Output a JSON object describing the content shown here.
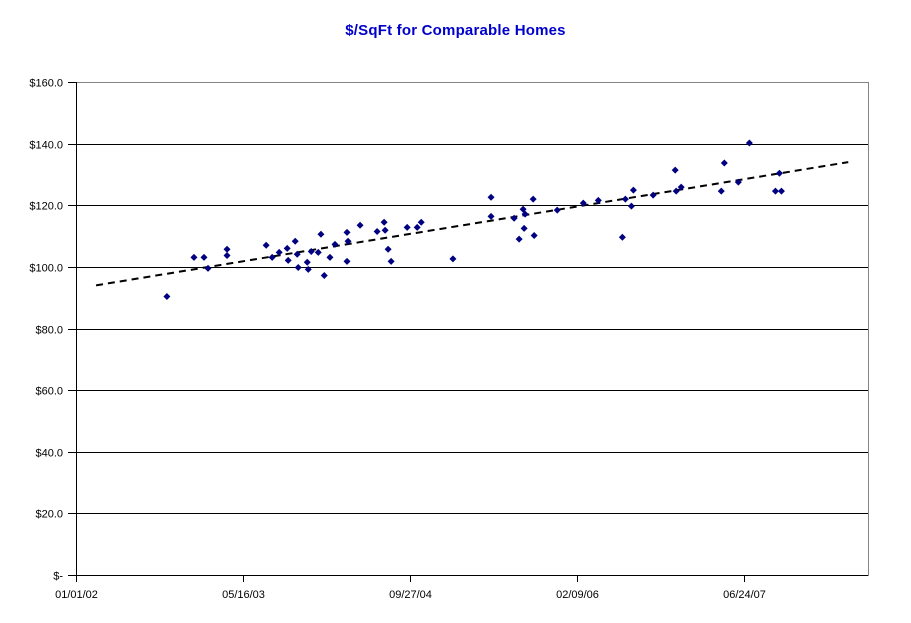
{
  "title": "$/SqFt for Comparable Homes",
  "colors": {
    "title": "#0000CC",
    "marker": "#000080",
    "trendline": "#000000",
    "gridline": "#000000",
    "axis": "#000000",
    "plot_border": "#848484",
    "tick_label": "#000000",
    "background": "#FFFFFF"
  },
  "chart_data": {
    "type": "scatter",
    "title": "$/SqFt for Comparable Homes",
    "legend": "none",
    "grid": "horizontal",
    "x_axis": {
      "unit": "sale date, linear in days since 01/01/02",
      "range_days": [
        0,
        2370
      ],
      "ticks": [
        {
          "days": 0,
          "label": "01/01/02"
        },
        {
          "days": 500,
          "label": "05/16/03"
        },
        {
          "days": 1000,
          "label": "09/27/04"
        },
        {
          "days": 1500,
          "label": "02/09/06"
        },
        {
          "days": 2000,
          "label": "06/24/07"
        }
      ]
    },
    "y_axis": {
      "unit": "price per square foot ($)",
      "range": [
        0,
        160
      ],
      "tick_step": 20,
      "tick_labels": [
        "$-",
        "$20.0",
        "$40.0",
        "$60.0",
        "$80.0",
        "$100.0",
        "$120.0",
        "$140.0",
        "$160.0"
      ]
    },
    "series": [
      {
        "name": "$/SqFt",
        "marker": "diamond",
        "marker_size": 7,
        "points_day_price": [
          [
            272,
            90.4
          ],
          [
            353,
            103.1
          ],
          [
            383,
            103.1
          ],
          [
            395,
            99.5
          ],
          [
            452,
            105.7
          ],
          [
            452,
            103.7
          ],
          [
            569,
            107.0
          ],
          [
            587,
            103.1
          ],
          [
            608,
            104.7
          ],
          [
            632,
            106.0
          ],
          [
            635,
            102.1
          ],
          [
            656,
            108.3
          ],
          [
            662,
            104.1
          ],
          [
            665,
            99.8
          ],
          [
            692,
            101.5
          ],
          [
            695,
            99.2
          ],
          [
            704,
            105.0
          ],
          [
            725,
            104.7
          ],
          [
            733,
            110.6
          ],
          [
            743,
            97.2
          ],
          [
            760,
            103.1
          ],
          [
            775,
            107.3
          ],
          [
            811,
            111.2
          ],
          [
            814,
            108.3
          ],
          [
            811,
            101.8
          ],
          [
            850,
            113.5
          ],
          [
            901,
            111.5
          ],
          [
            922,
            114.5
          ],
          [
            925,
            111.9
          ],
          [
            934,
            105.7
          ],
          [
            943,
            101.8
          ],
          [
            991,
            112.8
          ],
          [
            1021,
            112.8
          ],
          [
            1033,
            114.5
          ],
          [
            1128,
            102.6
          ],
          [
            1242,
            122.6
          ],
          [
            1242,
            116.4
          ],
          [
            1311,
            115.8
          ],
          [
            1326,
            109.0
          ],
          [
            1338,
            118.7
          ],
          [
            1344,
            117.1
          ],
          [
            1341,
            112.5
          ],
          [
            1368,
            122.0
          ],
          [
            1371,
            110.2
          ],
          [
            1440,
            118.4
          ],
          [
            1518,
            120.7
          ],
          [
            1563,
            121.6
          ],
          [
            1635,
            109.6
          ],
          [
            1644,
            122.0
          ],
          [
            1662,
            119.7
          ],
          [
            1668,
            124.9
          ],
          [
            1727,
            123.3
          ],
          [
            1793,
            131.4
          ],
          [
            1796,
            124.6
          ],
          [
            1811,
            125.9
          ],
          [
            1931,
            124.6
          ],
          [
            1940,
            133.7
          ],
          [
            1982,
            127.5
          ],
          [
            2015,
            140.2
          ],
          [
            2093,
            124.6
          ],
          [
            2105,
            130.4
          ],
          [
            2111,
            124.6
          ]
        ]
      }
    ],
    "trendline": {
      "style": "dashed",
      "from_day_price": [
        60,
        94.0
      ],
      "to_day_price": [
        2311,
        134.0
      ]
    }
  }
}
